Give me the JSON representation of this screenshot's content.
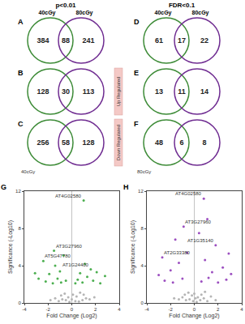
{
  "chart_data": [
    {
      "type": "venn",
      "panel": "A",
      "header": "p<0.01",
      "sets": [
        "40cGy",
        "80cGy"
      ],
      "colors": [
        "#3d8b37",
        "#6f2c91"
      ],
      "values": [
        384,
        88,
        241
      ]
    },
    {
      "type": "venn",
      "panel": "B",
      "side_label": "Up Regulated",
      "colors": [
        "#3d8b37",
        "#6f2c91"
      ],
      "values": [
        128,
        30,
        113
      ]
    },
    {
      "type": "venn",
      "panel": "C",
      "side_label": "Down Regulated",
      "footnote": "40cGy",
      "colors": [
        "#3d8b37",
        "#6f2c91"
      ],
      "values": [
        256,
        58,
        128
      ]
    },
    {
      "type": "venn",
      "panel": "D",
      "header": "FDR<0.1",
      "sets": [
        "40cGy",
        "80cGy"
      ],
      "colors": [
        "#3d8b37",
        "#6f2c91"
      ],
      "values": [
        61,
        17,
        22
      ]
    },
    {
      "type": "venn",
      "panel": "E",
      "colors": [
        "#3d8b37",
        "#6f2c91"
      ],
      "values": [
        13,
        11,
        14
      ]
    },
    {
      "type": "venn",
      "panel": "F",
      "footnote": "80cGy",
      "colors": [
        "#3d8b37",
        "#6f2c91"
      ],
      "values": [
        48,
        6,
        8
      ]
    },
    {
      "type": "scatter",
      "panel": "G",
      "x_label": "Fold Change (Log2)",
      "y_label": "Significance (-Log10)",
      "xlim": [
        -4,
        4
      ],
      "xticks": [
        -4,
        -2,
        0,
        2,
        4
      ],
      "ylim": [
        0,
        12
      ],
      "yticks": [
        0,
        4,
        8,
        12
      ],
      "series": [
        {
          "color": "#b5b5b5",
          "x": [
            -0.2,
            0.3,
            -0.5,
            0.6,
            -0.8,
            0.9,
            -1.1,
            1.2,
            -0.3,
            0.4,
            -1.4,
            1.5,
            0.1,
            -0.6,
            0.7,
            -1.8,
            1.9,
            0.0,
            -0.9,
            1.0
          ],
          "values": [
            0.1,
            0.2,
            0.3,
            0.15,
            0.4,
            0.3,
            0.2,
            0.5,
            0.6,
            0.7,
            0.5,
            0.4,
            0.9,
            1.0,
            1.1,
            0.3,
            0.6,
            0.4,
            0.8,
            0.9
          ]
        },
        {
          "color": "#4caf50",
          "x": [
            -2.2,
            -1.6,
            -1.2,
            -0.9,
            -0.5,
            0.5,
            0.9,
            1.3,
            1.8,
            2.4,
            -2.8,
            -1.9,
            -1.0,
            0.7,
            1.6,
            -1.4,
            2.1,
            -2.4,
            1.1,
            -0.7,
            2.8,
            -3.1,
            0.3,
            -1.5,
            1.0
          ],
          "values": [
            2.3,
            2.1,
            2.6,
            2.2,
            2.4,
            2.5,
            2.2,
            2.8,
            2.4,
            2.1,
            2.6,
            3.1,
            3.4,
            3.2,
            3.6,
            4.0,
            3.3,
            4.5,
            4.2,
            5.1,
            2.9,
            3.2,
            2.1,
            5.6,
            11.0
          ]
        }
      ],
      "annotations": [
        {
          "text": "AT4G02580",
          "x": 1.0,
          "y": 11.0
        },
        {
          "text": "AT3G27960",
          "x": -1.5,
          "y": 5.6
        },
        {
          "text": "AT5G47780",
          "x": -2.4,
          "y": 4.5
        },
        {
          "text": "AT1G24400",
          "x": 1.6,
          "y": 3.6
        }
      ]
    },
    {
      "type": "scatter",
      "panel": "H",
      "x_label": "Fold Change (Log2)",
      "y_label": "Significance (-Log10)",
      "xlim": [
        -4,
        4
      ],
      "xticks": [
        -4,
        -2,
        0,
        2,
        4
      ],
      "ylim": [
        0,
        12
      ],
      "yticks": [
        0,
        4,
        8,
        12
      ],
      "series": [
        {
          "color": "#b5b5b5",
          "x": [
            -0.1,
            0.2,
            -0.4,
            0.5,
            -0.7,
            0.8,
            -1.0,
            1.1,
            -0.2,
            0.3,
            -1.3,
            1.4,
            0.0,
            -0.5,
            0.6,
            -1.7,
            1.8,
            0.1,
            -0.8,
            0.9
          ],
          "values": [
            0.2,
            0.1,
            0.4,
            0.3,
            0.3,
            0.5,
            0.6,
            0.2,
            0.8,
            0.6,
            0.4,
            0.7,
            1.0,
            1.1,
            0.9,
            0.5,
            0.3,
            0.5,
            0.9,
            1.2
          ]
        },
        {
          "color": "#9c4fc0",
          "x": [
            -2.5,
            -1.8,
            -1.0,
            0.6,
            1.2,
            2.0,
            2.7,
            -3.0,
            -2.0,
            1.5,
            2.4,
            -1.3,
            0.9,
            3.1,
            -0.6,
            1.8,
            -1.6,
            0.4,
            1.1,
            -0.9,
            0.8,
            -2.7,
            2.9
          ],
          "values": [
            2.4,
            2.2,
            2.6,
            2.3,
            2.7,
            2.2,
            2.5,
            3.0,
            3.5,
            3.3,
            3.8,
            4.3,
            4.6,
            3.1,
            5.4,
            6.2,
            6.8,
            7.5,
            9.0,
            8.2,
            11.2,
            4.9,
            5.3
          ]
        }
      ],
      "annotations": [
        {
          "text": "AT4G02580",
          "x": 0.8,
          "y": 11.2
        },
        {
          "text": "AT3G27960",
          "x": -0.9,
          "y": 8.2
        },
        {
          "text": "AT1G35140",
          "x": 1.8,
          "y": 6.2
        },
        {
          "text": "AT2G33380",
          "x": -2.7,
          "y": 4.9
        }
      ]
    }
  ]
}
